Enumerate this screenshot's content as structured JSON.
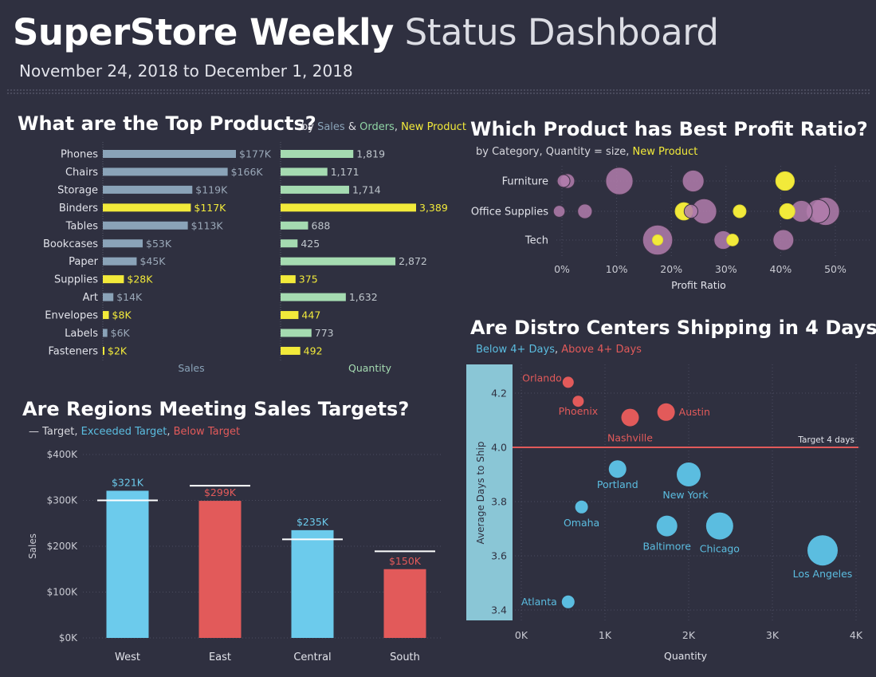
{
  "header": {
    "title_bold": "SuperStore Weekly",
    "title_light": "Status Dashboard",
    "date_range": "November 24, 2018 to December 1, 2018"
  },
  "colors": {
    "background": "#2f3040",
    "bar_default": "#8aa3b8",
    "bar_new": "#f2ea3a",
    "qty_default": "#a5dbb1",
    "region_above": "#6ccbec",
    "region_below": "#e25a5a",
    "bubble_purple": "#b27cad",
    "bubble_yellow": "#f2ea3a",
    "distro_blue": "#5bbde0",
    "distro_red": "#e25a5a"
  },
  "top_products": {
    "title": "What are the Top Products?",
    "sub_by": "by ",
    "sub_sales": "Sales",
    "sub_amp": " & ",
    "sub_orders": "Orders",
    "sub_comma": ", ",
    "sub_new": "New Product"
  },
  "regions": {
    "title": "Are Regions Meeting Sales Targets?",
    "sub_target": "— Target",
    "sub_comma1": ", ",
    "sub_exceeded": "Exceeded Target",
    "sub_comma2": ", ",
    "sub_below": "Below Target"
  },
  "profit": {
    "title": "Which Product has Best Profit Ratio?",
    "sub_text": "by Category, Quantity = size, ",
    "sub_new": "New Product"
  },
  "distro": {
    "title": "Are Distro Centers Shipping in 4 Days?",
    "sub_below": "Below 4+ Days",
    "sub_comma": ", ",
    "sub_above": "Above 4+ Days"
  },
  "chart_data": [
    {
      "id": "top-products",
      "type": "bar",
      "categories": [
        "Phones",
        "Chairs",
        "Storage",
        "Binders",
        "Tables",
        "Bookcases",
        "Paper",
        "Supplies",
        "Art",
        "Envelopes",
        "Labels",
        "Fasteners"
      ],
      "series": [
        {
          "name": "Sales",
          "values": [
            177,
            166,
            119,
            117,
            113,
            53,
            45,
            28,
            14,
            8,
            6,
            2
          ],
          "labels": [
            "$177K",
            "$166K",
            "$119K",
            "$117K",
            "$113K",
            "$53K",
            "$45K",
            "$28K",
            "$14K",
            "$8K",
            "$6K",
            "$2K"
          ]
        },
        {
          "name": "Quantity",
          "values": [
            1819,
            1171,
            1714,
            3389,
            688,
            425,
            2872,
            375,
            1632,
            447,
            773,
            492
          ],
          "labels": [
            "1,819",
            "1,171",
            "1,714",
            "3,389",
            "688",
            "425",
            "2,872",
            "375",
            "1,632",
            "447",
            "773",
            "492"
          ]
        }
      ],
      "new_product": [
        false,
        false,
        false,
        true,
        false,
        false,
        false,
        true,
        false,
        true,
        false,
        true
      ],
      "xlabel_sales": "Sales",
      "xlabel_quantity": "Quantity"
    },
    {
      "id": "region-targets",
      "type": "bar",
      "categories": [
        "West",
        "East",
        "Central",
        "South"
      ],
      "values": [
        321,
        299,
        235,
        150
      ],
      "labels": [
        "$321K",
        "$299K",
        "$235K",
        "$150K"
      ],
      "targets": [
        300,
        332,
        215,
        189
      ],
      "exceeded": [
        true,
        false,
        true,
        false
      ],
      "ylabel": "Sales",
      "ylim": [
        0,
        400
      ],
      "yticks": [
        0,
        100,
        200,
        300,
        400
      ],
      "ytick_labels": [
        "$0K",
        "$100K",
        "$200K",
        "$300K",
        "$400K"
      ]
    },
    {
      "id": "profit-ratio",
      "type": "scatter",
      "categories": [
        "Furniture",
        "Office Supplies",
        "Tech"
      ],
      "xlabel": "Profit Ratio",
      "xlim": [
        -2,
        51
      ],
      "xticks": [
        0,
        10,
        20,
        30,
        40,
        50
      ],
      "xtick_labels": [
        "0%",
        "10%",
        "20%",
        "30%",
        "40%",
        "50%"
      ],
      "points": [
        {
          "cat": 0,
          "x": 0.3,
          "q": 4,
          "new": false
        },
        {
          "cat": 0,
          "x": 1.0,
          "q": 6,
          "new": false
        },
        {
          "cat": 0,
          "x": 10.5,
          "q": 32,
          "new": false
        },
        {
          "cat": 0,
          "x": 24,
          "q": 18,
          "new": false
        },
        {
          "cat": 0,
          "x": 40.8,
          "q": 12,
          "new": true
        },
        {
          "cat": 1,
          "x": -0.5,
          "q": 3,
          "new": false
        },
        {
          "cat": 1,
          "x": 4.2,
          "q": 6,
          "new": false
        },
        {
          "cat": 1,
          "x": 22.3,
          "q": 10,
          "new": true
        },
        {
          "cat": 1,
          "x": 23.6,
          "q": 5,
          "new": false
        },
        {
          "cat": 1,
          "x": 26.0,
          "q": 26,
          "new": false
        },
        {
          "cat": 1,
          "x": 32.5,
          "q": 4,
          "new": true
        },
        {
          "cat": 1,
          "x": 41.2,
          "q": 7,
          "new": true
        },
        {
          "cat": 1,
          "x": 43.8,
          "q": 18,
          "new": false
        },
        {
          "cat": 1,
          "x": 46.8,
          "q": 22,
          "new": false
        },
        {
          "cat": 1,
          "x": 48.2,
          "q": 34,
          "new": false
        },
        {
          "cat": 2,
          "x": 17.5,
          "q": 40,
          "new": false
        },
        {
          "cat": 2,
          "x": 17.5,
          "q": 2,
          "new": true
        },
        {
          "cat": 2,
          "x": 29.5,
          "q": 12,
          "new": false
        },
        {
          "cat": 2,
          "x": 31.2,
          "q": 3,
          "new": true
        },
        {
          "cat": 2,
          "x": 40.5,
          "q": 16,
          "new": false
        }
      ]
    },
    {
      "id": "distro-centers",
      "type": "scatter",
      "xlabel": "Quantity",
      "ylabel": "Average Days to Ship",
      "xlim": [
        0,
        4000
      ],
      "ylim": [
        3.37,
        4.3
      ],
      "xticks": [
        0,
        1000,
        2000,
        3000,
        4000
      ],
      "xtick_labels": [
        "0K",
        "1K",
        "2K",
        "3K",
        "4K"
      ],
      "yticks": [
        3.4,
        3.6,
        3.8,
        4.0,
        4.2
      ],
      "ytick_labels": [
        "3.4",
        "3.6",
        "3.8",
        "4.0",
        "4.2"
      ],
      "target_value": 4.0,
      "target_label": "Target 4 days",
      "points": [
        {
          "name": "Orlando",
          "x": 560,
          "y": 4.24,
          "size": 7,
          "above": true
        },
        {
          "name": "Phoenix",
          "x": 680,
          "y": 4.17,
          "size": 7,
          "above": true
        },
        {
          "name": "Nashville",
          "x": 1300,
          "y": 4.11,
          "size": 11,
          "above": true
        },
        {
          "name": "Austin",
          "x": 1730,
          "y": 4.13,
          "size": 11,
          "above": true
        },
        {
          "name": "Portland",
          "x": 1150,
          "y": 3.92,
          "size": 11,
          "above": false
        },
        {
          "name": "New York",
          "x": 2000,
          "y": 3.9,
          "size": 15,
          "above": false
        },
        {
          "name": "Omaha",
          "x": 720,
          "y": 3.78,
          "size": 8,
          "above": false
        },
        {
          "name": "Baltimore",
          "x": 1740,
          "y": 3.71,
          "size": 13,
          "above": false
        },
        {
          "name": "Chicago",
          "x": 2370,
          "y": 3.71,
          "size": 17,
          "above": false
        },
        {
          "name": "Los Angeles",
          "x": 3600,
          "y": 3.62,
          "size": 19,
          "above": false
        },
        {
          "name": "Atlanta",
          "x": 560,
          "y": 3.43,
          "size": 8,
          "above": false
        }
      ]
    }
  ]
}
